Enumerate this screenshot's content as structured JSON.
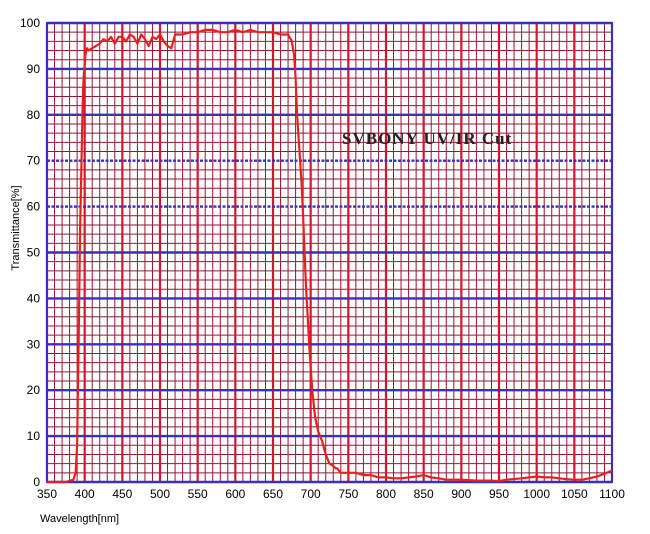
{
  "chart_data": {
    "type": "line",
    "title": "",
    "annotation": "SVBONY UV/IR Cut",
    "xlabel": "Wavelength[nm]",
    "ylabel": "Transmittance[%]",
    "xlim": [
      350,
      1100
    ],
    "ylim": [
      0,
      100
    ],
    "x_ticks": [
      350,
      400,
      450,
      500,
      550,
      600,
      650,
      700,
      750,
      800,
      850,
      900,
      950,
      1000,
      1050,
      1100
    ],
    "y_ticks": [
      0,
      10,
      20,
      30,
      40,
      50,
      60,
      70,
      80,
      90,
      100
    ],
    "grid": true,
    "colors": {
      "line": "#e8201c",
      "major_vertical": "#d8142c",
      "minor_vertical": "#a0102a",
      "major_horizontal": "#3a2fbf",
      "minor_horizontal": "#8b1a3a",
      "frame": "#3a2fbf"
    },
    "series": [
      {
        "x": [
          350,
          375,
          385,
          388,
          390,
          392,
          394,
          396,
          397,
          398,
          399,
          400,
          401,
          403,
          405,
          410,
          415,
          420,
          425,
          430,
          435,
          440,
          445,
          450,
          455,
          460,
          465,
          470,
          475,
          480,
          485,
          490,
          495,
          500,
          505,
          510,
          515,
          520,
          525,
          530,
          540,
          550,
          560,
          570,
          580,
          590,
          600,
          610,
          620,
          630,
          640,
          650,
          660,
          670,
          675,
          678,
          680,
          682,
          684,
          686,
          688,
          690,
          692,
          694,
          696,
          698,
          700,
          702,
          704,
          706,
          710,
          715,
          720,
          725,
          730,
          733,
          735,
          740,
          750,
          760,
          770,
          780,
          790,
          800,
          810,
          820,
          830,
          840,
          850,
          860,
          870,
          880,
          900,
          920,
          940,
          950,
          960,
          980,
          1000,
          1010,
          1020,
          1030,
          1040,
          1050,
          1060,
          1070,
          1080,
          1090,
          1100
        ],
        "y": [
          0,
          0,
          0.5,
          2,
          8,
          30,
          55,
          72,
          80,
          86,
          89,
          91,
          93,
          94.5,
          94,
          94.5,
          95,
          95.5,
          96.5,
          96,
          97,
          95.5,
          97,
          97,
          96,
          97.5,
          97,
          95.5,
          97.5,
          96.5,
          95,
          97,
          96.5,
          97.5,
          96,
          95,
          94.5,
          97.5,
          97.5,
          97.5,
          98,
          98,
          98.5,
          98.5,
          98,
          98,
          98.5,
          98,
          98.5,
          98,
          98,
          98,
          97.5,
          97.5,
          96,
          93,
          88,
          80,
          75,
          70,
          65,
          58,
          50,
          42,
          36,
          30,
          25,
          20,
          17,
          14,
          11,
          9,
          6,
          4,
          3.5,
          3,
          3,
          2,
          2,
          2,
          1.5,
          1.5,
          1,
          1,
          0.8,
          0.8,
          1,
          1.2,
          1.5,
          1,
          0.8,
          0.5,
          0.5,
          0.3,
          0.3,
          0.2,
          0.5,
          0.8,
          1.2,
          1,
          1,
          0.8,
          0.6,
          0.5,
          0.5,
          0.8,
          1.2,
          1.8,
          2.5
        ]
      }
    ]
  }
}
